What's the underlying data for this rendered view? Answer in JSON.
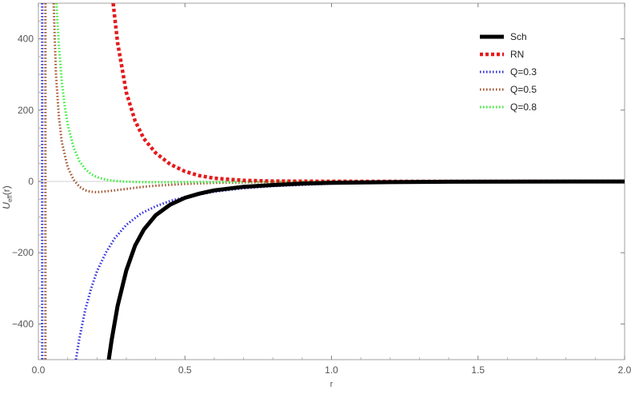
{
  "chart_data": {
    "type": "line",
    "xlabel": "r",
    "ylabel_main": "U",
    "ylabel_sub": "eff",
    "ylabel_tail": "(r)",
    "xlim": [
      0.0,
      2.0
    ],
    "ylim": [
      -500,
      500
    ],
    "x_ticks": [
      0.0,
      0.5,
      1.0,
      1.5,
      2.0
    ],
    "x_tick_labels": [
      "0.0",
      "0.5",
      "1.0",
      "1.5",
      "2.0"
    ],
    "y_ticks": [
      -400,
      -200,
      0,
      200,
      400
    ],
    "y_tick_labels": [
      "−400",
      "−200",
      "0",
      "200",
      "400"
    ],
    "grid": false,
    "legend_position": "top-right",
    "series": [
      {
        "name": "Sch",
        "color": "#000000",
        "dash": "solid",
        "x": [
          0.24,
          0.25,
          0.27,
          0.3,
          0.33,
          0.36,
          0.4,
          0.45,
          0.5,
          0.55,
          0.6,
          0.7,
          0.8,
          0.9,
          1.0,
          1.2,
          1.4,
          1.6,
          1.8,
          2.0
        ],
        "y": [
          -500,
          -445,
          -350,
          -250,
          -180,
          -135,
          -95,
          -65,
          -46,
          -34,
          -25,
          -15,
          -10,
          -6,
          -4,
          -2,
          -1,
          -0.6,
          -0.3,
          -0.2
        ]
      },
      {
        "name": "RN",
        "color": "#e41a1c",
        "dash": "dotted-bold",
        "x": [
          0.255,
          0.27,
          0.3,
          0.33,
          0.36,
          0.4,
          0.45,
          0.5,
          0.55,
          0.6,
          0.7,
          0.8,
          1.0,
          1.2,
          1.5,
          2.0
        ],
        "y": [
          500,
          390,
          250,
          170,
          120,
          80,
          48,
          28,
          16,
          9,
          3,
          1,
          0.3,
          0.1,
          0.0,
          0.0
        ]
      },
      {
        "name": "Q=0.3",
        "color": "#2b2bd8",
        "dash": "dotted",
        "x": [
          0.128,
          0.14,
          0.16,
          0.18,
          0.2,
          0.23,
          0.26,
          0.3,
          0.35,
          0.4,
          0.45,
          0.5,
          0.6,
          0.7,
          0.8,
          1.0,
          1.2,
          1.5,
          2.0
        ],
        "y": [
          -500,
          -440,
          -360,
          -300,
          -252,
          -200,
          -160,
          -122,
          -90,
          -70,
          -55,
          -44,
          -29,
          -19,
          -13,
          -6,
          -3,
          -1,
          -0.3
        ]
      },
      {
        "name": "Q=0.5",
        "color": "#a0522d",
        "dash": "dotted",
        "x": [
          0.052,
          0.055,
          0.06,
          0.07,
          0.08,
          0.1,
          0.12,
          0.14,
          0.16,
          0.18,
          0.2,
          0.23,
          0.26,
          0.3,
          0.35,
          0.4,
          0.5,
          0.6,
          0.8,
          1.0,
          1.5,
          2.0
        ],
        "y": [
          500,
          420,
          300,
          180,
          110,
          40,
          5,
          -15,
          -25,
          -29,
          -30,
          -28,
          -25,
          -21,
          -16,
          -12,
          -7,
          -4,
          -1.5,
          -0.7,
          -0.2,
          -0.1
        ]
      },
      {
        "name": "Q=0.8",
        "color": "#33ee33",
        "dash": "dotted",
        "x": [
          0.062,
          0.065,
          0.07,
          0.08,
          0.09,
          0.1,
          0.12,
          0.14,
          0.16,
          0.18,
          0.2,
          0.23,
          0.26,
          0.3,
          0.35,
          0.4,
          0.5,
          0.6,
          0.8,
          1.0,
          1.5,
          2.0
        ],
        "y": [
          500,
          450,
          380,
          280,
          210,
          160,
          95,
          57,
          35,
          20,
          12,
          5,
          1.5,
          -1,
          -2,
          -2.2,
          -2,
          -1.6,
          -1,
          -0.6,
          -0.2,
          -0.1
        ]
      }
    ],
    "extra_left_series": [
      {
        "name_ref": "Q=0.3",
        "x": 0.013
      },
      {
        "name_ref": "Q=0.5",
        "x": 0.024
      }
    ]
  }
}
